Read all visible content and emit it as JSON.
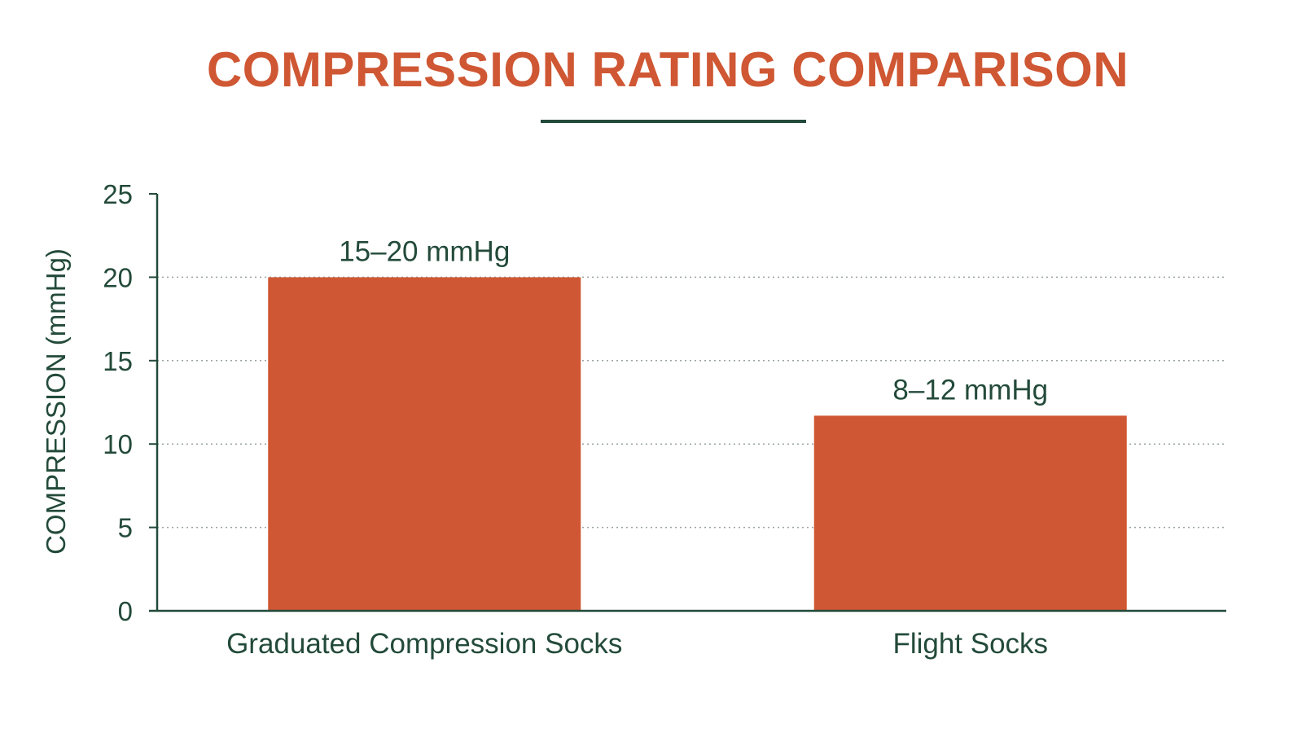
{
  "colors": {
    "bar": "#cf5733",
    "title": "#cf5733",
    "text": "#234a3a",
    "axis": "#234a3a",
    "grid": "#9aa59f"
  },
  "chart_data": {
    "type": "bar",
    "title": "COMPRESSION RATING COMPARISON",
    "xlabel": "",
    "ylabel": "COMPRESSION (mmHg)",
    "ylim": [
      0,
      25
    ],
    "yticks": [
      0,
      5,
      10,
      15,
      20,
      25
    ],
    "grid": "horizontal-dotted",
    "categories": [
      "Graduated Compression Socks",
      "Flight Socks"
    ],
    "values": [
      20,
      11.7
    ],
    "data_labels": [
      "15–20 mmHg",
      "8–12 mmHg"
    ]
  }
}
